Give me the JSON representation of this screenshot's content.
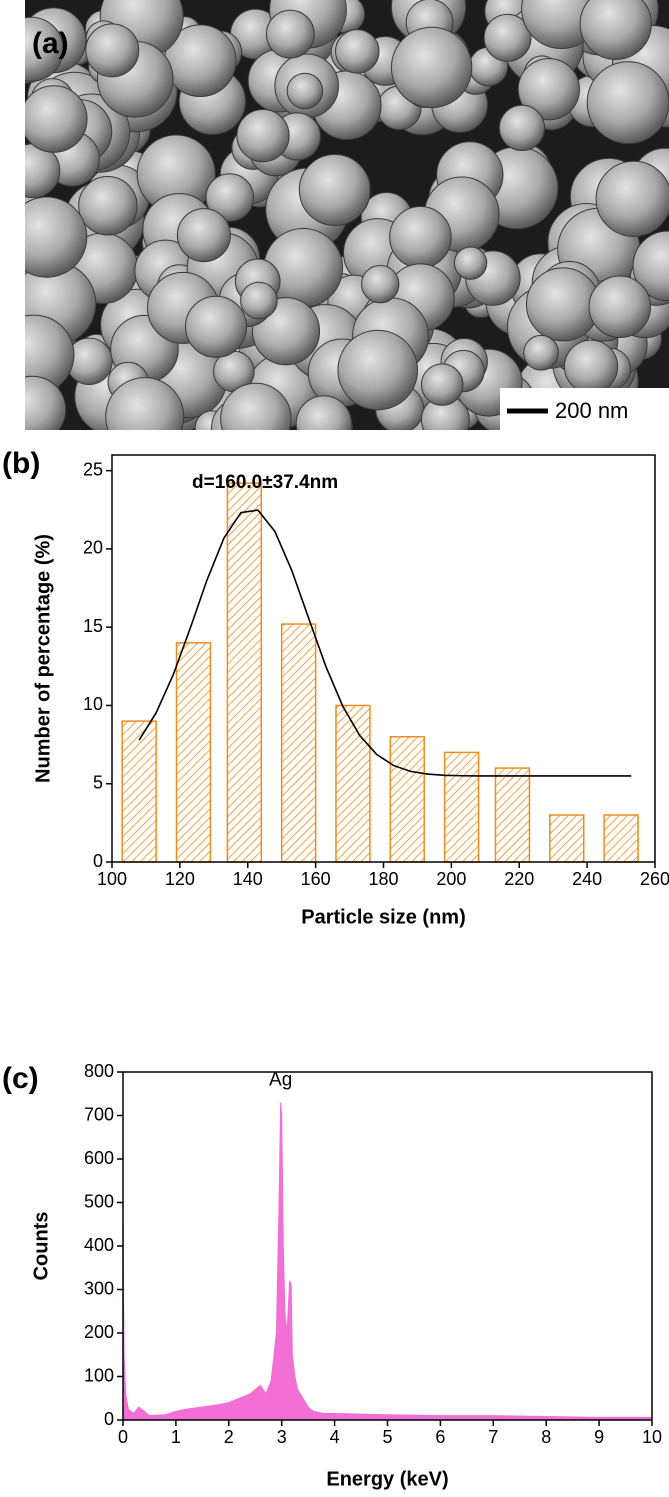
{
  "image": {
    "label": "(a)",
    "scale_bar": "200 nm"
  },
  "chart_data": [
    {
      "type": "bar",
      "panel_label": "(b)",
      "annotation": "d=160.0±37.4nm",
      "x_label": "Particle size (nm)",
      "y_label": "Number of percentage (%)",
      "x": [
        108,
        124,
        139,
        155,
        171,
        187,
        203,
        218,
        234,
        250
      ],
      "values": [
        9,
        14,
        24.2,
        15.2,
        10,
        8,
        7,
        6,
        3,
        3
      ],
      "bar_width": 10,
      "hatch": true,
      "color": "#f08c1e",
      "fit": {
        "color": "#000000",
        "x": [
          108,
          113,
          118,
          123,
          128,
          133,
          138,
          143,
          148,
          153,
          158,
          163,
          168,
          173,
          178,
          183,
          188,
          193,
          198,
          203,
          208,
          213,
          218,
          223,
          228,
          233,
          238,
          243,
          248,
          253
        ],
        "values": [
          7.79,
          9.53,
          11.94,
          14.9,
          18.02,
          20.7,
          22.32,
          22.48,
          21.12,
          18.61,
          15.54,
          12.5,
          9.95,
          8.08,
          6.87,
          6.16,
          5.79,
          5.62,
          5.54,
          5.51,
          5.5,
          5.5,
          5.5,
          5.5,
          5.5,
          5.5,
          5.5,
          5.5,
          5.5,
          5.5
        ]
      },
      "xlim": [
        100,
        260
      ],
      "xticks": [
        100,
        120,
        140,
        160,
        180,
        200,
        220,
        240,
        260
      ],
      "ylim": [
        0,
        26
      ],
      "yticks": [
        0,
        5,
        10,
        15,
        20,
        25
      ]
    },
    {
      "type": "area",
      "panel_label": "(c)",
      "annotation": "Ag",
      "x_label": "Energy (keV)",
      "y_label": "Counts",
      "color": "#f26fd6",
      "x": [
        0,
        0.02,
        0.05,
        0.1,
        0.2,
        0.3,
        0.5,
        0.8,
        1,
        1.2,
        1.5,
        1.8,
        2,
        2.2,
        2.4,
        2.6,
        2.7,
        2.8,
        2.9,
        2.95,
        2.98,
        3.0,
        3.03,
        3.06,
        3.1,
        3.15,
        3.18,
        3.2,
        3.25,
        3.3,
        3.4,
        3.5,
        3.6,
        3.8,
        4,
        5,
        6,
        7,
        8,
        9,
        10
      ],
      "values": [
        460,
        150,
        60,
        25,
        15,
        30,
        10,
        12,
        20,
        25,
        30,
        35,
        40,
        50,
        60,
        80,
        60,
        90,
        200,
        500,
        730,
        700,
        400,
        250,
        200,
        320,
        310,
        150,
        100,
        70,
        50,
        30,
        20,
        15,
        15,
        12,
        10,
        10,
        8,
        6,
        6
      ],
      "xlim": [
        0,
        10
      ],
      "xticks": [
        0,
        1,
        2,
        3,
        4,
        5,
        6,
        7,
        8,
        9,
        10
      ],
      "ylim": [
        0,
        800
      ],
      "yticks": [
        0,
        100,
        200,
        300,
        400,
        500,
        600,
        700,
        800
      ]
    }
  ]
}
